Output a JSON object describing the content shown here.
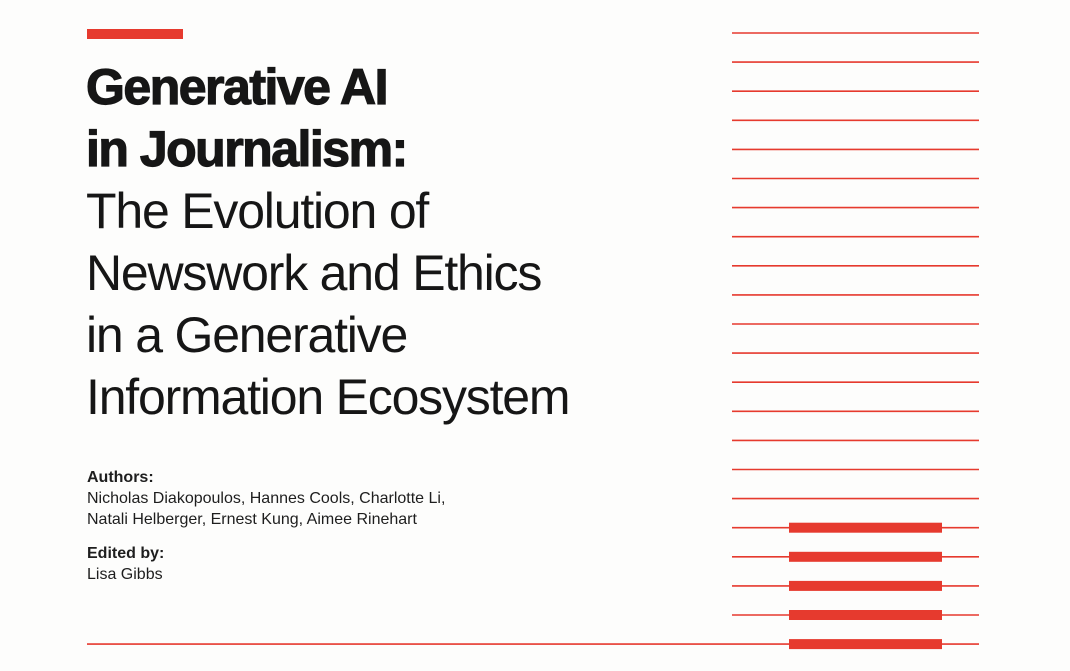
{
  "cover": {
    "title_bold": [
      "Generative AI",
      "in Journalism:"
    ],
    "title_regular": [
      "The Evolution of",
      "Newswork and Ethics",
      "in a Generative",
      "Information Ecosystem"
    ]
  },
  "credits": {
    "authors_label": "Authors:",
    "authors_lines": [
      "Nicholas Diakopoulos, Hannes Cools, Charlotte Li,",
      "Natali Helberger, Ernest Kung, Aimee Rinehart"
    ],
    "editor_label": "Edited by:",
    "editor_name": "Lisa Gibbs"
  },
  "colors": {
    "accent": "#e63a2e",
    "text": "#161616",
    "background": "#fdfdfc"
  }
}
